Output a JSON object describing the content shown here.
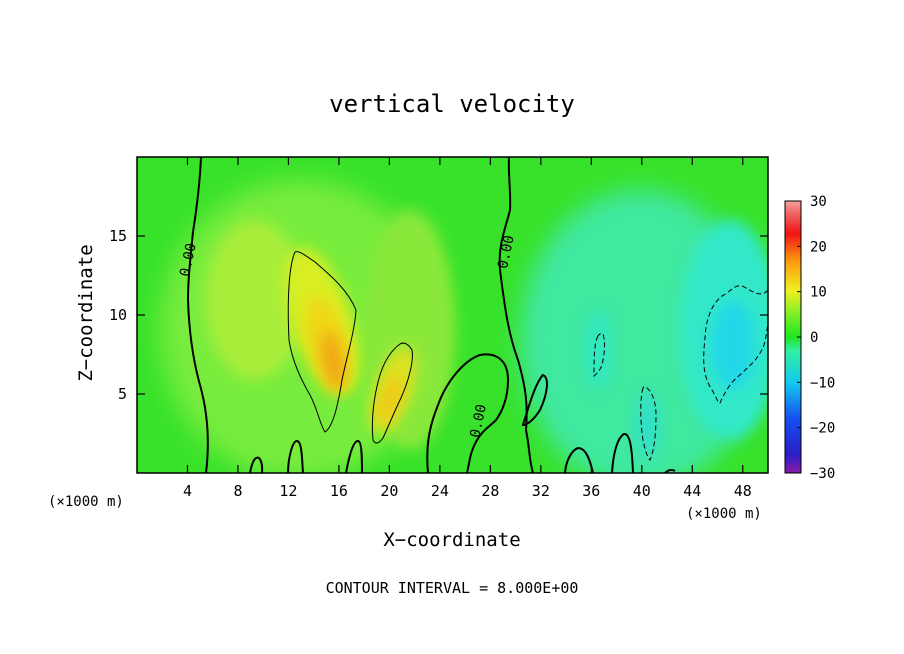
{
  "chart_data": {
    "type": "heatmap",
    "title": "vertical velocity",
    "xlabel": "X−coordinate",
    "ylabel": "Z−coordinate",
    "x_unit_left": "(×1000 m)",
    "x_unit_right": "(×1000 m)",
    "xlim": [
      0,
      50
    ],
    "ylim": [
      0,
      20
    ],
    "x_ticks": [
      4,
      8,
      12,
      16,
      20,
      24,
      28,
      32,
      36,
      40,
      44,
      48
    ],
    "y_ticks": [
      5,
      10,
      15
    ],
    "footer": "CONTOUR INTERVAL = 8.000E+00",
    "colorbar": {
      "min": -30,
      "max": 30,
      "ticks": [
        30,
        20,
        10,
        0,
        -10,
        -20,
        -30
      ],
      "tick_labels": [
        "30",
        "20",
        "10",
        "0",
        "−10",
        "−20",
        "−30"
      ]
    },
    "contour_labels": [
      {
        "text": "0.00",
        "x": 4.0,
        "z": 13.5
      },
      {
        "text": "0.00",
        "x": 29.2,
        "z": 14.0
      },
      {
        "text": "0.00",
        "x": 27.0,
        "z": 3.3
      }
    ],
    "features": [
      {
        "kind": "updraft",
        "x": 15.2,
        "z": 7.5,
        "peak": 16
      },
      {
        "kind": "updraft",
        "x": 20.2,
        "z": 5.0,
        "peak": 12
      },
      {
        "kind": "downdraft",
        "x": 46.5,
        "z": 8.0,
        "peak": -12
      },
      {
        "kind": "downdraft",
        "x": 37.0,
        "z": 7.5,
        "peak": -8
      },
      {
        "kind": "downdraft",
        "x": 40.5,
        "z": 3.5,
        "peak": -9
      }
    ],
    "grid": false,
    "legend": "none"
  }
}
